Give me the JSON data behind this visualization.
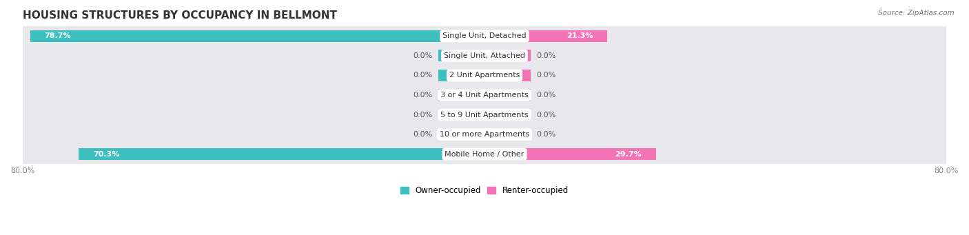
{
  "title": "HOUSING STRUCTURES BY OCCUPANCY IN BELLMONT",
  "source": "Source: ZipAtlas.com",
  "categories": [
    "Single Unit, Detached",
    "Single Unit, Attached",
    "2 Unit Apartments",
    "3 or 4 Unit Apartments",
    "5 to 9 Unit Apartments",
    "10 or more Apartments",
    "Mobile Home / Other"
  ],
  "owner_pct": [
    78.7,
    0.0,
    0.0,
    0.0,
    0.0,
    0.0,
    70.3
  ],
  "renter_pct": [
    21.3,
    0.0,
    0.0,
    0.0,
    0.0,
    0.0,
    29.7
  ],
  "owner_color": "#3DBFBF",
  "renter_color": "#F472B6",
  "xlim_left": -80.0,
  "xlim_right": 80.0,
  "bar_height": 0.6,
  "stub_size": 8.0,
  "row_bg_color": "#E8E8EC",
  "title_fontsize": 11,
  "label_fontsize": 8,
  "value_fontsize": 8,
  "tick_fontsize": 8,
  "source_fontsize": 7.5,
  "fig_bg": "#FFFFFF"
}
